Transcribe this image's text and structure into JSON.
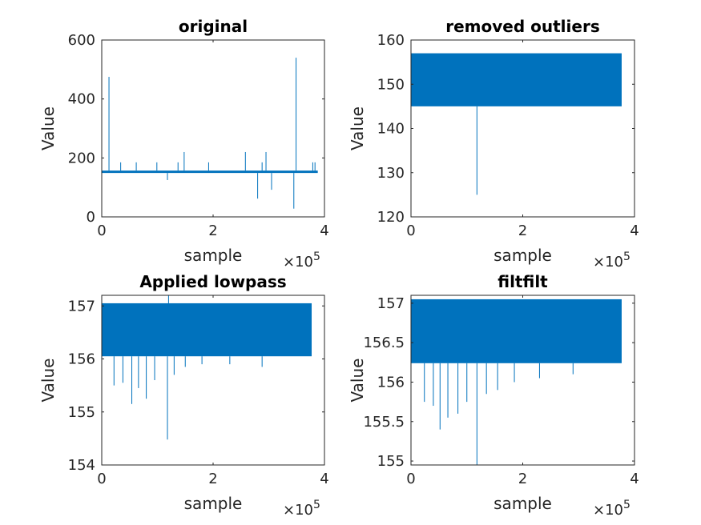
{
  "chart_data": [
    {
      "type": "line",
      "title": "original",
      "xlabel": "sample",
      "ylabel": "Value",
      "xlim": [
        0,
        4
      ],
      "ylim": [
        0,
        600
      ],
      "x_exponent": "×10",
      "x_exponent_power": "5",
      "x_ticks": [
        "0",
        "2",
        "4"
      ],
      "y_ticks": [
        "0",
        "200",
        "400",
        "600"
      ],
      "x_tick_values": [
        0,
        2,
        4
      ],
      "y_tick_values": [
        0,
        200,
        400,
        600
      ],
      "color": "#0072BD",
      "band": {
        "x_start": 0.0,
        "x_end": 3.88,
        "y_low": 149,
        "y_high": 157
      },
      "spikes": [
        {
          "x": 0.13,
          "y": 475
        },
        {
          "x": 0.34,
          "y": 185
        },
        {
          "x": 0.62,
          "y": 185
        },
        {
          "x": 0.99,
          "y": 185
        },
        {
          "x": 1.18,
          "y": 125
        },
        {
          "x": 1.37,
          "y": 185
        },
        {
          "x": 1.48,
          "y": 220
        },
        {
          "x": 1.92,
          "y": 185
        },
        {
          "x": 2.58,
          "y": 220
        },
        {
          "x": 2.8,
          "y": 62
        },
        {
          "x": 2.88,
          "y": 185
        },
        {
          "x": 2.95,
          "y": 220
        },
        {
          "x": 3.05,
          "y": 92
        },
        {
          "x": 3.45,
          "y": 28
        },
        {
          "x": 3.49,
          "y": 540
        },
        {
          "x": 3.79,
          "y": 185
        },
        {
          "x": 3.83,
          "y": 185
        }
      ]
    },
    {
      "type": "line",
      "title": "removed outliers",
      "xlabel": "sample",
      "ylabel": "Value",
      "xlim": [
        0,
        4
      ],
      "ylim": [
        120,
        160
      ],
      "x_exponent": "×10",
      "x_exponent_power": "5",
      "x_ticks": [
        "0",
        "2",
        "4"
      ],
      "y_ticks": [
        "120",
        "130",
        "140",
        "150",
        "160"
      ],
      "x_tick_values": [
        0,
        2,
        4
      ],
      "y_tick_values": [
        120,
        130,
        140,
        150,
        160
      ],
      "color": "#0072BD",
      "band": {
        "x_start": 0.0,
        "x_end": 3.77,
        "y_low": 145,
        "y_high": 157
      },
      "spikes": [
        {
          "x": 1.18,
          "y": 125
        }
      ]
    },
    {
      "type": "line",
      "title": "Applied lowpass",
      "xlabel": "sample",
      "ylabel": "Value",
      "xlim": [
        0,
        4
      ],
      "ylim": [
        154,
        157.2
      ],
      "x_exponent": "×10",
      "x_exponent_power": "5",
      "x_ticks": [
        "0",
        "2",
        "4"
      ],
      "y_ticks": [
        "154",
        "155",
        "156",
        "157"
      ],
      "x_tick_values": [
        0,
        2,
        4
      ],
      "y_tick_values": [
        154,
        155,
        156,
        157
      ],
      "color": "#0072BD",
      "band": {
        "x_start": 0.0,
        "x_end": 3.77,
        "y_low": 156.05,
        "y_high": 157.05
      },
      "spikes": [
        {
          "x": 1.18,
          "y": 154.48
        },
        {
          "x": 0.54,
          "y": 155.15
        },
        {
          "x": 0.8,
          "y": 155.25
        },
        {
          "x": 0.22,
          "y": 155.5
        },
        {
          "x": 0.38,
          "y": 155.55
        },
        {
          "x": 0.66,
          "y": 155.45
        },
        {
          "x": 0.95,
          "y": 155.6
        },
        {
          "x": 1.3,
          "y": 155.7
        },
        {
          "x": 1.5,
          "y": 155.85
        },
        {
          "x": 1.8,
          "y": 155.9
        },
        {
          "x": 2.3,
          "y": 155.9
        },
        {
          "x": 2.88,
          "y": 155.85
        },
        {
          "x": 1.2,
          "y": 157.2
        }
      ]
    },
    {
      "type": "line",
      "title": "filtfilt",
      "xlabel": "sample",
      "ylabel": "Value",
      "xlim": [
        0,
        4
      ],
      "ylim": [
        154.95,
        157.1
      ],
      "x_exponent": "×10",
      "x_exponent_power": "5",
      "x_ticks": [
        "0",
        "2",
        "4"
      ],
      "y_ticks": [
        "155",
        "155.5",
        "156",
        "156.5",
        "157"
      ],
      "x_tick_values": [
        0,
        2,
        4
      ],
      "y_tick_values": [
        155,
        155.5,
        156,
        156.5,
        157
      ],
      "color": "#0072BD",
      "band": {
        "x_start": 0.0,
        "x_end": 3.77,
        "y_low": 156.24,
        "y_high": 157.05
      },
      "spikes": [
        {
          "x": 1.18,
          "y": 154.95
        },
        {
          "x": 0.52,
          "y": 155.4
        },
        {
          "x": 0.84,
          "y": 155.6
        },
        {
          "x": 0.24,
          "y": 155.75
        },
        {
          "x": 0.4,
          "y": 155.7
        },
        {
          "x": 0.66,
          "y": 155.55
        },
        {
          "x": 1.0,
          "y": 155.75
        },
        {
          "x": 1.35,
          "y": 155.85
        },
        {
          "x": 1.55,
          "y": 155.9
        },
        {
          "x": 1.85,
          "y": 156.0
        },
        {
          "x": 2.3,
          "y": 156.05
        },
        {
          "x": 2.9,
          "y": 156.1
        }
      ]
    }
  ]
}
